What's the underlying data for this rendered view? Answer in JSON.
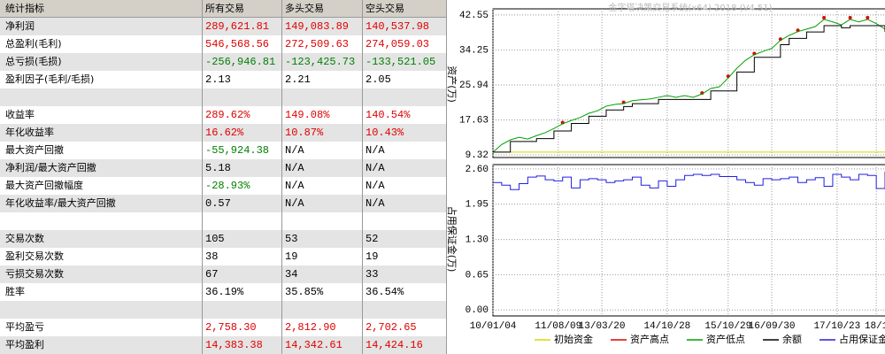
{
  "table": {
    "header": [
      "统计指标",
      "所有交易",
      "多头交易",
      "空头交易"
    ],
    "rows": [
      [
        "净利润",
        "289,621.81",
        "149,083.89",
        "140,537.98"
      ],
      [
        "总盈利(毛利)",
        "546,568.56",
        "272,509.63",
        "274,059.03"
      ],
      [
        "总亏损(毛损)",
        "-256,946.81",
        "-123,425.73",
        "-133,521.05"
      ],
      [
        "盈利因子(毛利/毛损)",
        "2.13",
        "2.21",
        "2.05"
      ],
      [
        "收益率",
        "289.62%",
        "149.08%",
        "140.54%"
      ],
      [
        "年化收益率",
        "16.62%",
        "10.87%",
        "10.43%"
      ],
      [
        "最大资产回撤",
        "-55,924.38",
        "N/A",
        "N/A"
      ],
      [
        "净利润/最大资产回撤",
        "5.18",
        "N/A",
        "N/A"
      ],
      [
        "最大资产回撤幅度",
        "-28.93%",
        "N/A",
        "N/A"
      ],
      [
        "年化收益率/最大资产回撤",
        "0.57",
        "N/A",
        "N/A"
      ],
      [
        "交易次数",
        "105",
        "53",
        "52"
      ],
      [
        "盈利交易次数",
        "38",
        "19",
        "19"
      ],
      [
        "亏损交易次数",
        "67",
        "34",
        "33"
      ],
      [
        "胜率",
        "36.19%",
        "35.85%",
        "36.54%"
      ],
      [
        "平均盈亏",
        "2,758.30",
        "2,812.90",
        "2,702.65"
      ],
      [
        "平均盈利",
        "14,383.38",
        "14,342.61",
        "14,424.16"
      ]
    ]
  },
  "chart_data": [
    {
      "type": "line",
      "title": "金字塔决策交易系统(x64) 2018 (V4.51)",
      "y_label": "资产(万)",
      "ylim": [
        8.7,
        44.0
      ],
      "yticks": [
        9.32,
        17.63,
        25.94,
        34.25,
        42.55
      ],
      "grid": true,
      "x": [
        0,
        2,
        4,
        6,
        8,
        10,
        12,
        14,
        16,
        18,
        20,
        22,
        24,
        26,
        28,
        30,
        32,
        34,
        36,
        38,
        40,
        42,
        44,
        46,
        48,
        50,
        52,
        54,
        56,
        58,
        60,
        62,
        64,
        66,
        68,
        70,
        72,
        74,
        76,
        78,
        80,
        82,
        84,
        86,
        88,
        90
      ],
      "series": [
        {
          "name": "初始资金",
          "color": "#d8d800",
          "x": [
            0,
            90
          ],
          "values": [
            10,
            10
          ]
        },
        {
          "name": "资产高点",
          "color": "#e00000",
          "mode": "markers",
          "x": [
            16,
            30,
            48,
            54,
            60,
            66,
            70,
            76,
            82,
            86
          ],
          "values": [
            17.0,
            21.8,
            24.0,
            28.0,
            33.4,
            36.8,
            38.9,
            41.9,
            41.9,
            41.9
          ]
        },
        {
          "name": "资产低点",
          "color": "#00a000",
          "values": [
            9.95,
            11.8,
            12.9,
            13.5,
            13.1,
            13.9,
            14.6,
            15.6,
            16.7,
            17.5,
            18.2,
            19.2,
            19.8,
            20.9,
            21.3,
            21.5,
            22.2,
            22.4,
            22.6,
            23.0,
            23.4,
            23.0,
            23.4,
            23.0,
            23.8,
            25.1,
            25.5,
            27.6,
            29.9,
            31.8,
            33.1,
            33.9,
            34.6,
            36.5,
            37.7,
            38.6,
            39.2,
            39.8,
            41.5,
            40.9,
            40.2,
            41.5,
            40.9,
            41.5,
            40.5,
            39.2
          ]
        },
        {
          "name": "余额",
          "color": "#000000",
          "step": true,
          "values": [
            10.0,
            10.0,
            12.5,
            12.5,
            12.5,
            13.2,
            13.2,
            15.0,
            15.0,
            16.8,
            16.8,
            18.5,
            18.5,
            20.0,
            20.0,
            20.8,
            21.5,
            21.5,
            21.5,
            22.5,
            22.5,
            22.5,
            22.5,
            22.5,
            22.5,
            24.5,
            24.5,
            24.5,
            29.0,
            29.0,
            32.5,
            32.5,
            32.5,
            35.5,
            37.0,
            37.0,
            38.5,
            38.5,
            40.0,
            40.0,
            39.5,
            40.0,
            40.0,
            40.0,
            40.0,
            38.5
          ]
        }
      ]
    },
    {
      "type": "line",
      "y_label": "占用保证金(万)",
      "ylim": [
        -0.11,
        2.68
      ],
      "yticks": [
        {
          "value": 0,
          "label": "0.00"
        },
        0.65,
        {
          "value": 1.3,
          "label": "1.30"
        },
        1.95,
        {
          "value": 2.6,
          "label": "2.60"
        }
      ],
      "grid": true,
      "xlim": [
        0,
        90
      ],
      "xticks": [
        {
          "value": 0,
          "label": "10/01/04"
        },
        {
          "value": 15,
          "label": "11/08/09"
        },
        {
          "value": 25,
          "label": "13/03/20"
        },
        {
          "value": 40,
          "label": "14/10/28"
        },
        {
          "value": 54,
          "label": "15/10/29"
        },
        {
          "value": 64,
          "label": "16/09/30"
        },
        {
          "value": 79,
          "label": "17/10/23"
        },
        {
          "value": 88,
          "label": "18/1"
        }
      ],
      "x": [
        0,
        2,
        4,
        6,
        8,
        10,
        12,
        14,
        16,
        18,
        20,
        22,
        24,
        26,
        28,
        30,
        32,
        34,
        36,
        38,
        40,
        42,
        44,
        46,
        48,
        50,
        52,
        54,
        56,
        58,
        60,
        62,
        64,
        66,
        68,
        70,
        72,
        74,
        76,
        78,
        80,
        82,
        84,
        86,
        88,
        90
      ],
      "series": [
        {
          "name": "占用保证金",
          "color": "#2020e0",
          "step": true,
          "values": [
            2.35,
            2.3,
            2.22,
            2.33,
            2.45,
            2.47,
            2.4,
            2.38,
            2.45,
            2.25,
            2.4,
            2.42,
            2.4,
            2.35,
            2.38,
            2.4,
            2.45,
            2.3,
            2.25,
            2.38,
            2.28,
            2.4,
            2.48,
            2.5,
            2.48,
            2.5,
            2.46,
            2.46,
            2.4,
            2.35,
            2.3,
            2.42,
            2.4,
            2.42,
            2.45,
            2.35,
            2.4,
            2.44,
            2.28,
            2.5,
            2.45,
            2.4,
            2.5,
            2.48,
            2.24,
            2.55
          ]
        }
      ]
    }
  ]
}
